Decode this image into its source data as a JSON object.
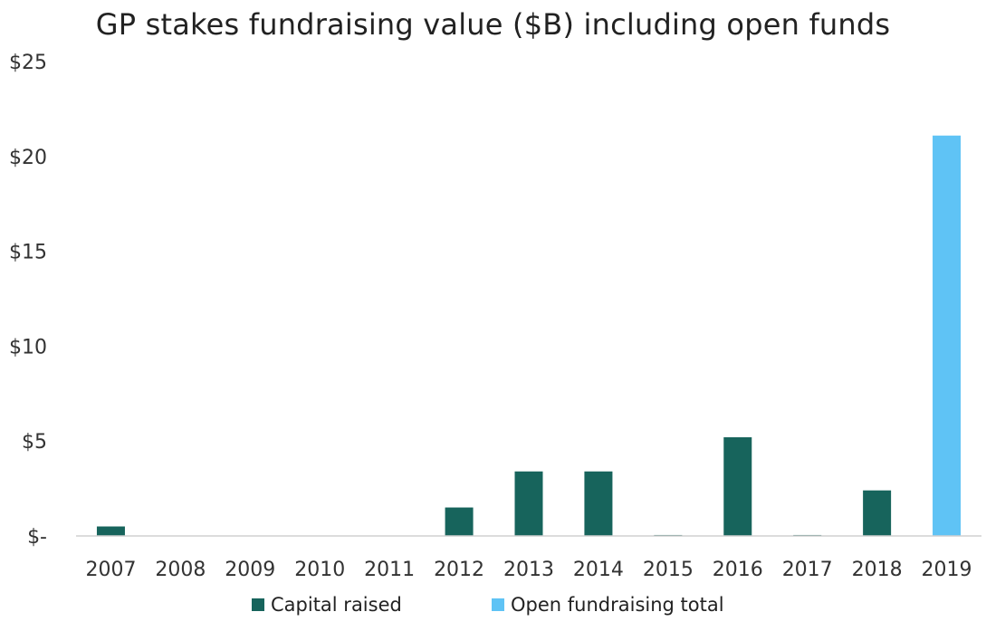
{
  "chart_data": {
    "type": "bar",
    "title": "GP stakes fundraising value ($B) including open funds",
    "xlabel": "",
    "ylabel": "",
    "ylim": [
      0,
      25
    ],
    "y_ticks": [
      0,
      5,
      10,
      15,
      20,
      25
    ],
    "y_tick_labels": [
      "$-",
      "$5",
      "$10",
      "$15",
      "$20",
      "$25"
    ],
    "grid": false,
    "legend_position": "bottom",
    "categories": [
      "2007",
      "2008",
      "2009",
      "2010",
      "2011",
      "2012",
      "2013",
      "2014",
      "2015",
      "2016",
      "2017",
      "2018",
      "2019"
    ],
    "series": [
      {
        "name": "Capital raised",
        "color": "#17645C",
        "values": [
          0.5,
          0,
          0,
          0,
          0,
          1.5,
          3.4,
          3.4,
          0.05,
          5.2,
          0.05,
          2.4,
          0
        ]
      },
      {
        "name": "Open fundraising total",
        "color": "#5FC3F5",
        "values": [
          0,
          0,
          0,
          0,
          0,
          0,
          0,
          0,
          0,
          0,
          0,
          0,
          21.1
        ]
      }
    ]
  }
}
